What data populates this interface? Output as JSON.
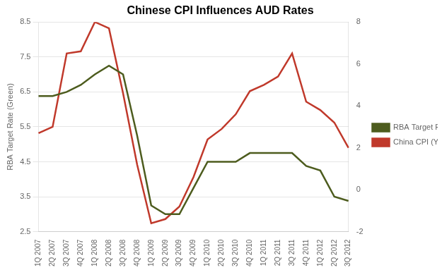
{
  "chart_data": {
    "type": "line",
    "title": "Chinese CPI Influences AUD Rates",
    "ylabel": "RBA Target Rate (Green)",
    "categories": [
      "1Q 2007",
      "2Q 2007",
      "3Q 2007",
      "4Q 2007",
      "1Q 2008",
      "2Q 2008",
      "3Q 2008",
      "4Q 2008",
      "1Q 2009",
      "2Q 2009",
      "3Q 2009",
      "4Q 2009",
      "1Q 2010",
      "2Q 2010",
      "3Q 2010",
      "4Q 2010",
      "1Q 2011",
      "2Q 2011",
      "3Q 2011",
      "4Q 2011",
      "1Q 2012",
      "2Q 2012",
      "3Q 2012"
    ],
    "series": [
      {
        "name": "RBA Target Rate",
        "color": "#4d5c1e",
        "values": [
          6.38,
          6.38,
          6.5,
          6.7,
          7.0,
          7.25,
          7.0,
          5.25,
          3.25,
          3.0,
          3.0,
          3.75,
          4.5,
          4.5,
          4.5,
          4.75,
          4.75,
          4.75,
          4.75,
          4.38,
          4.25,
          3.5,
          3.38
        ]
      },
      {
        "name": "China CPI (YoY)",
        "color": "#c0392b",
        "axis": "y2",
        "values": [
          2.7,
          3.0,
          6.5,
          6.6,
          8.0,
          7.7,
          4.6,
          1.2,
          -1.6,
          -1.4,
          -0.8,
          0.6,
          2.4,
          2.9,
          3.6,
          4.7,
          5.0,
          5.4,
          6.5,
          4.2,
          3.8,
          3.2,
          2.0
        ]
      }
    ],
    "ylim": [
      2.5,
      8.5
    ],
    "yticks": [
      2.5,
      3.5,
      4.5,
      5.5,
      6.5,
      7.5,
      8.5
    ],
    "y2lim": [
      -2,
      8
    ],
    "y2ticks": [
      -2,
      0,
      2,
      4,
      6,
      8
    ],
    "grid": true,
    "legend": "right"
  }
}
